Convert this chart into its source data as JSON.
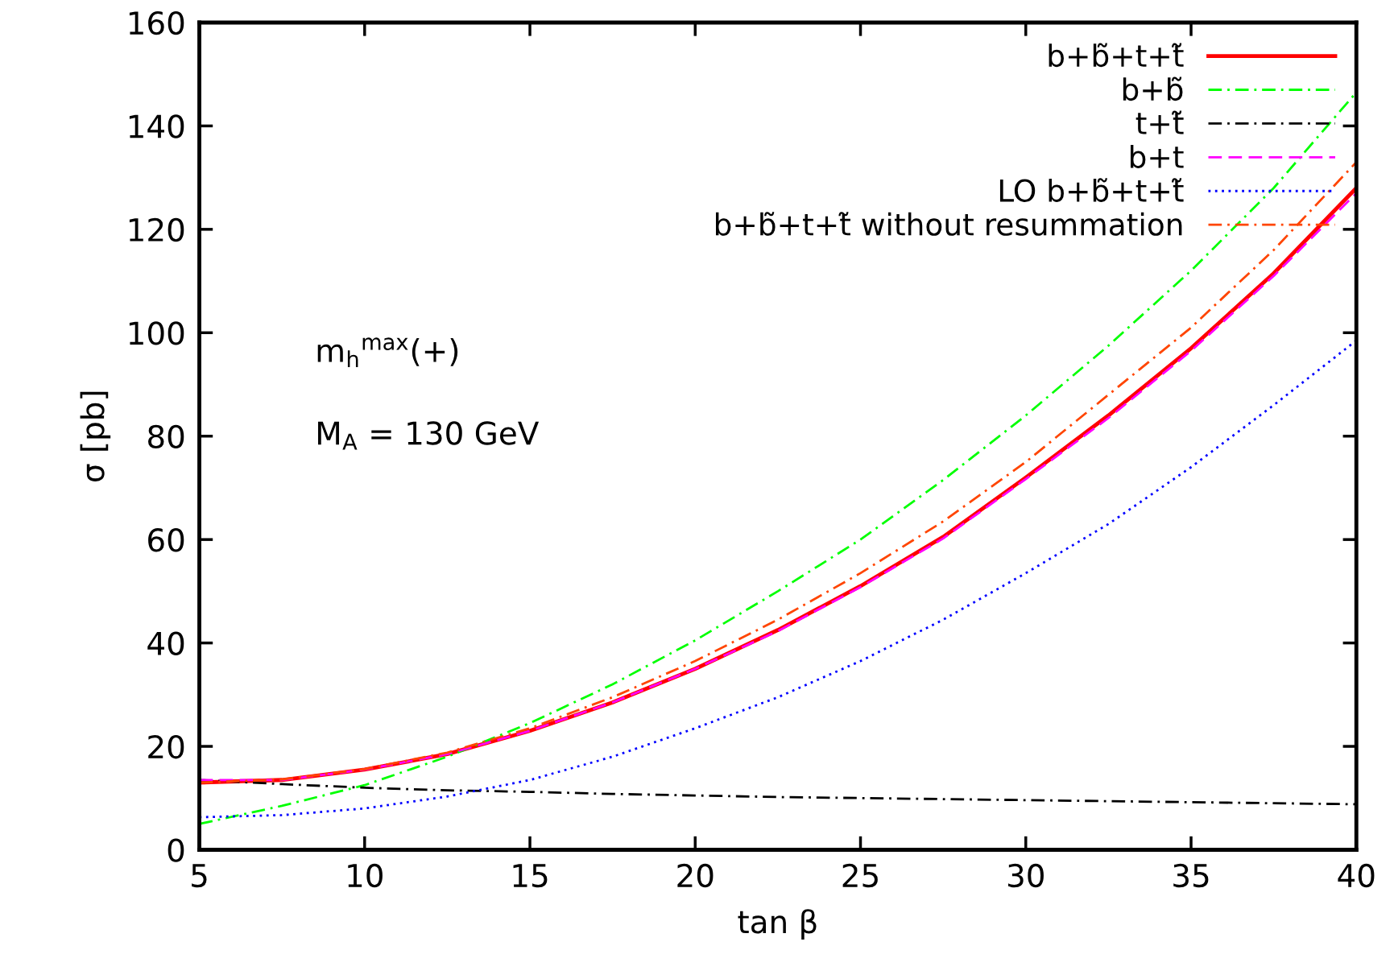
{
  "chart_data": {
    "type": "line",
    "xlabel": "tan β",
    "ylabel": "σ [pb]",
    "x": [
      5,
      7.5,
      10,
      12.5,
      15,
      17.5,
      20,
      22.5,
      25,
      27.5,
      30,
      32.5,
      35,
      37.5,
      40
    ],
    "series": [
      {
        "name": "b+b̃+t+t̃",
        "color": "#ff0000",
        "line_style": "solid",
        "values": [
          13,
          13.5,
          15.5,
          18.5,
          23,
          28.5,
          35,
          42.5,
          51,
          60.5,
          72,
          84,
          97,
          111.5,
          128
        ]
      },
      {
        "name": "b+b̃",
        "color": "#00ff00",
        "line_style": "dashdot",
        "values": [
          5,
          8.5,
          12.5,
          18,
          24.5,
          32,
          40.5,
          50,
          60,
          71.5,
          84,
          97.5,
          112,
          128,
          146.5
        ]
      },
      {
        "name": "t+t̃",
        "color": "#000000",
        "line_style": "dashdot",
        "values": [
          13.5,
          12.7,
          12,
          11.5,
          11.2,
          10.8,
          10.5,
          10.2,
          10,
          9.8,
          9.6,
          9.4,
          9.2,
          9,
          8.8
        ]
      },
      {
        "name": "b+t",
        "color": "#ff00ff",
        "line_style": "dashed",
        "values": [
          13.5,
          13.5,
          15.5,
          18.5,
          23,
          28.5,
          35,
          42.3,
          50.8,
          60.2,
          71.7,
          83.5,
          96.5,
          111,
          127
        ]
      },
      {
        "name": "LO b+b̃+t+t̃",
        "color": "#0000ff",
        "line_style": "dotted",
        "values": [
          6.3,
          6.7,
          8,
          10.3,
          13.5,
          18,
          23.5,
          29.5,
          36.5,
          44.5,
          53.5,
          63,
          74,
          86,
          98.5
        ]
      },
      {
        "name": "b+b̃+t+t̃ without resummation",
        "color": "#ff4500",
        "line_style": "dashdot",
        "values": [
          13,
          13.6,
          15.6,
          18.8,
          23.5,
          29.5,
          36.5,
          44.5,
          53.5,
          63.5,
          75,
          88,
          101,
          116,
          133
        ]
      }
    ],
    "xlim": [
      5,
      40
    ],
    "xticks": [
      5,
      10,
      15,
      20,
      25,
      30,
      35,
      40
    ],
    "ylim": [
      0,
      160
    ],
    "yticks": [
      0,
      20,
      40,
      60,
      80,
      100,
      120,
      140,
      160
    ],
    "grid": false,
    "legend": "top right",
    "marker": "none",
    "annotations": [
      {
        "text": "m$_{h}$$^{max}$(+)"
      },
      {
        "text": "M$_{A}$ = 130 GeV"
      }
    ]
  }
}
